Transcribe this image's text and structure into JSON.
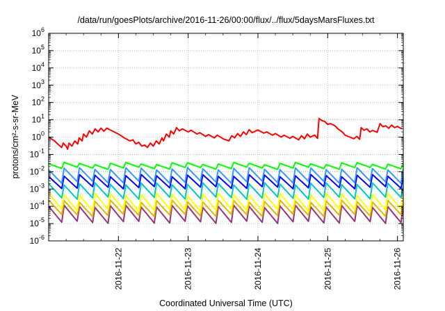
{
  "chart_data": {
    "type": "line",
    "title": "/data/run/goesPlots/archive/2016-11-26/00:00/flux/../flux/5daysMarsFluxes.txt",
    "xlabel": "Coordinated Universal Time (UTC)",
    "ylabel": "protons/cm²-s-sr-MeV",
    "y_scale": "log",
    "ylim_exp": [
      -6,
      6
    ],
    "y_ticks": [
      {
        "base": "10",
        "exp": "-6"
      },
      {
        "base": "10",
        "exp": "-5"
      },
      {
        "base": "10",
        "exp": "-4"
      },
      {
        "base": "10",
        "exp": "-3"
      },
      {
        "base": "10",
        "exp": "-2"
      },
      {
        "base": "10",
        "exp": "-1"
      },
      {
        "base": "10",
        "exp": "0"
      },
      {
        "base": "10",
        "exp": "1"
      },
      {
        "base": "10",
        "exp": "2"
      },
      {
        "base": "10",
        "exp": "3"
      },
      {
        "base": "10",
        "exp": "4"
      },
      {
        "base": "10",
        "exp": "5"
      },
      {
        "base": "10",
        "exp": "6"
      }
    ],
    "x_range_days": [
      "2016-11-21",
      "2016-11-26"
    ],
    "x_ticks": [
      "2016-11-22",
      "2016-11-23",
      "2016-11-24",
      "2016-11-25",
      "2016-11-26"
    ],
    "grid": true,
    "series": [
      {
        "color": "#ff0000",
        "width": 2,
        "points": [
          [
            "2016-11-21 00:00",
            1.0
          ],
          [
            "2016-11-21 02:00",
            0.6
          ],
          [
            "2016-11-21 03:30",
            0.35
          ],
          [
            "2016-11-21 04:30",
            0.25
          ],
          [
            "2016-11-21 05:00",
            0.45
          ],
          [
            "2016-11-21 06:00",
            0.3
          ],
          [
            "2016-11-21 06:30",
            0.2
          ],
          [
            "2016-11-21 07:00",
            0.45
          ],
          [
            "2016-11-21 08:00",
            0.3
          ],
          [
            "2016-11-21 09:00",
            0.6
          ],
          [
            "2016-11-21 10:00",
            0.4
          ],
          [
            "2016-11-21 10:30",
            0.9
          ],
          [
            "2016-11-21 11:30",
            0.6
          ],
          [
            "2016-11-21 12:00",
            1.5
          ],
          [
            "2016-11-21 13:00",
            1.0
          ],
          [
            "2016-11-21 14:00",
            2.3
          ],
          [
            "2016-11-21 15:00",
            1.5
          ],
          [
            "2016-11-21 16:00",
            3.0
          ],
          [
            "2016-11-21 17:00",
            2.0
          ],
          [
            "2016-11-21 18:00",
            3.3
          ],
          [
            "2016-11-21 19:00",
            2.2
          ],
          [
            "2016-11-21 20:00",
            3.3
          ],
          [
            "2016-11-22 00:00",
            1.5
          ],
          [
            "2016-11-22 02:00",
            0.9
          ],
          [
            "2016-11-22 04:00",
            0.6
          ],
          [
            "2016-11-22 05:00",
            0.7
          ],
          [
            "2016-11-22 06:00",
            0.4
          ],
          [
            "2016-11-22 07:00",
            0.5
          ],
          [
            "2016-11-22 08:00",
            0.3
          ],
          [
            "2016-11-22 09:00",
            0.35
          ],
          [
            "2016-11-22 10:00",
            0.25
          ],
          [
            "2016-11-22 11:00",
            0.45
          ],
          [
            "2016-11-22 12:00",
            0.3
          ],
          [
            "2016-11-22 13:00",
            0.6
          ],
          [
            "2016-11-22 14:00",
            0.4
          ],
          [
            "2016-11-22 15:00",
            0.9
          ],
          [
            "2016-11-22 15:30",
            0.6
          ],
          [
            "2016-11-22 16:30",
            1.5
          ],
          [
            "2016-11-22 17:30",
            1.0
          ],
          [
            "2016-11-22 18:00",
            2.3
          ],
          [
            "2016-11-22 19:00",
            1.5
          ],
          [
            "2016-11-22 20:00",
            3.5
          ],
          [
            "2016-11-22 21:00",
            2.3
          ],
          [
            "2016-11-22 22:00",
            3.0
          ],
          [
            "2016-11-23 00:00",
            2.0
          ],
          [
            "2016-11-23 01:00",
            2.5
          ],
          [
            "2016-11-23 03:00",
            1.5
          ],
          [
            "2016-11-23 04:00",
            1.8
          ],
          [
            "2016-11-23 06:00",
            1.1
          ],
          [
            "2016-11-23 07:00",
            1.4
          ],
          [
            "2016-11-23 09:00",
            0.9
          ],
          [
            "2016-11-23 10:00",
            1.3
          ],
          [
            "2016-11-23 12:00",
            0.8
          ],
          [
            "2016-11-23 14:00",
            0.6
          ],
          [
            "2016-11-23 15:00",
            1.2
          ],
          [
            "2016-11-23 16:00",
            0.9
          ],
          [
            "2016-11-23 17:00",
            1.6
          ],
          [
            "2016-11-23 18:00",
            1.1
          ],
          [
            "2016-11-23 19:00",
            2.0
          ],
          [
            "2016-11-23 20:00",
            1.4
          ],
          [
            "2016-11-23 21:00",
            2.7
          ],
          [
            "2016-11-23 22:00",
            1.8
          ],
          [
            "2016-11-24 00:00",
            2.6
          ],
          [
            "2016-11-24 02:00",
            1.7
          ],
          [
            "2016-11-24 03:00",
            2.0
          ],
          [
            "2016-11-24 05:00",
            1.3
          ],
          [
            "2016-11-24 06:00",
            1.6
          ],
          [
            "2016-11-24 08:00",
            1.0
          ],
          [
            "2016-11-24 09:00",
            1.3
          ],
          [
            "2016-11-24 11:00",
            0.85
          ],
          [
            "2016-11-24 12:00",
            1.1
          ],
          [
            "2016-11-24 14:00",
            0.7
          ],
          [
            "2016-11-24 15:00",
            1.2
          ],
          [
            "2016-11-24 16:00",
            0.8
          ],
          [
            "2016-11-24 17:00",
            1.5
          ],
          [
            "2016-11-24 18:00",
            1.0
          ],
          [
            "2016-11-24 19:30",
            1.3
          ],
          [
            "2016-11-24 20:30",
            0.85
          ],
          [
            "2016-11-24 21:00",
            12
          ],
          [
            "2016-11-24 22:00",
            9
          ],
          [
            "2016-11-24 23:00",
            8
          ],
          [
            "2016-11-25 00:00",
            5.5
          ],
          [
            "2016-11-25 01:00",
            6
          ],
          [
            "2016-11-25 02:30",
            4.5
          ],
          [
            "2016-11-25 03:30",
            3.0
          ],
          [
            "2016-11-25 05:00",
            2.0
          ],
          [
            "2016-11-25 06:00",
            1.3
          ],
          [
            "2016-11-25 07:00",
            1.1
          ],
          [
            "2016-11-25 08:00",
            0.95
          ],
          [
            "2016-11-25 09:00",
            0.8
          ],
          [
            "2016-11-25 10:00",
            1.1
          ],
          [
            "2016-11-25 11:00",
            0.75
          ],
          [
            "2016-11-25 11:30",
            3.5
          ],
          [
            "2016-11-25 12:30",
            2.5
          ],
          [
            "2016-11-25 13:30",
            3.0
          ],
          [
            "2016-11-25 14:30",
            2.0
          ],
          [
            "2016-11-25 15:30",
            2.4
          ],
          [
            "2016-11-25 17:00",
            1.9
          ],
          [
            "2016-11-25 18:00",
            6.0
          ],
          [
            "2016-11-25 19:00",
            4.0
          ],
          [
            "2016-11-25 20:00",
            4.5
          ],
          [
            "2016-11-25 21:00",
            3.2
          ],
          [
            "2016-11-25 22:00",
            5.0
          ],
          [
            "2016-11-25 23:00",
            3.5
          ],
          [
            "2016-11-26 00:00",
            4.2
          ],
          [
            "2016-11-26 01:00",
            3.3
          ],
          [
            "2016-11-26 01:30",
            3.3
          ]
        ]
      },
      {
        "color": "#00ff00",
        "width": 2,
        "sawtooth": {
          "peak": 0.03,
          "trough": 0.016,
          "cycles": 23
        }
      },
      {
        "color": "#3399ff",
        "width": 2,
        "sawtooth": {
          "peak": 0.015,
          "trough": 0.0025,
          "cycles": 23
        }
      },
      {
        "color": "#0000ff",
        "width": 2,
        "sawtooth": {
          "peak": 0.006,
          "trough": 0.0012,
          "cycles": 23
        }
      },
      {
        "color": "#00c8c8",
        "width": 2,
        "sawtooth": {
          "peak": 0.002,
          "trough": 0.0003,
          "cycles": 23
        }
      },
      {
        "color": "#ffff00",
        "width": 2,
        "sawtooth": {
          "peak": 0.0005,
          "trough": 6e-05,
          "cycles": 23
        }
      },
      {
        "color": "#e6b400",
        "width": 2,
        "sawtooth": {
          "peak": 0.0002,
          "trough": 3e-05,
          "cycles": 23
        }
      },
      {
        "color": "#993377",
        "width": 2,
        "sawtooth": {
          "peak": 0.0001,
          "trough": 1.2e-05,
          "cycles": 23
        }
      }
    ]
  }
}
